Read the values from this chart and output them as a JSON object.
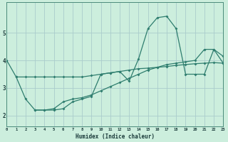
{
  "xlabel": "Humidex (Indice chaleur)",
  "bg_color": "#cceedd",
  "grid_color_major": "#aacccc",
  "grid_color_minor": "#bbdddd",
  "line_color": "#2e7d6e",
  "line1_x": [
    0,
    1,
    2,
    3,
    4,
    5,
    6,
    7,
    8,
    9,
    10,
    11,
    12,
    13,
    14,
    15,
    16,
    17,
    18,
    19,
    20,
    21,
    22,
    23
  ],
  "line1_y": [
    4.0,
    3.4,
    3.4,
    3.4,
    3.4,
    3.4,
    3.4,
    3.4,
    3.4,
    3.45,
    3.5,
    3.55,
    3.6,
    3.65,
    3.7,
    3.72,
    3.75,
    3.78,
    3.82,
    3.85,
    3.88,
    3.9,
    3.92,
    3.9
  ],
  "line2_x": [
    1,
    2,
    3,
    4,
    5,
    6,
    7,
    8,
    9,
    10,
    11,
    12,
    13,
    14,
    15,
    16,
    17,
    18,
    19,
    20,
    21,
    22,
    23
  ],
  "line2_y": [
    3.4,
    2.6,
    2.2,
    2.2,
    2.2,
    2.25,
    2.5,
    2.6,
    2.7,
    3.5,
    3.55,
    3.6,
    3.25,
    4.05,
    5.15,
    5.55,
    5.6,
    5.15,
    3.5,
    3.5,
    3.5,
    4.4,
    4.15
  ],
  "line3_x": [
    3,
    4,
    5,
    6,
    7,
    8,
    9,
    10,
    11,
    12,
    13,
    14,
    15,
    16,
    17,
    18,
    19,
    20,
    21,
    22,
    23
  ],
  "line3_y": [
    2.2,
    2.2,
    2.25,
    2.5,
    2.6,
    2.65,
    2.75,
    2.9,
    3.05,
    3.2,
    3.35,
    3.5,
    3.65,
    3.75,
    3.85,
    3.9,
    3.95,
    4.0,
    4.4,
    4.4,
    3.9
  ],
  "xlim": [
    0,
    23
  ],
  "ylim": [
    1.6,
    6.1
  ],
  "yticks": [
    2,
    3,
    4,
    5
  ],
  "xticks": [
    0,
    1,
    2,
    3,
    4,
    5,
    6,
    7,
    8,
    9,
    10,
    11,
    12,
    13,
    14,
    15,
    16,
    17,
    18,
    19,
    20,
    21,
    22,
    23
  ]
}
